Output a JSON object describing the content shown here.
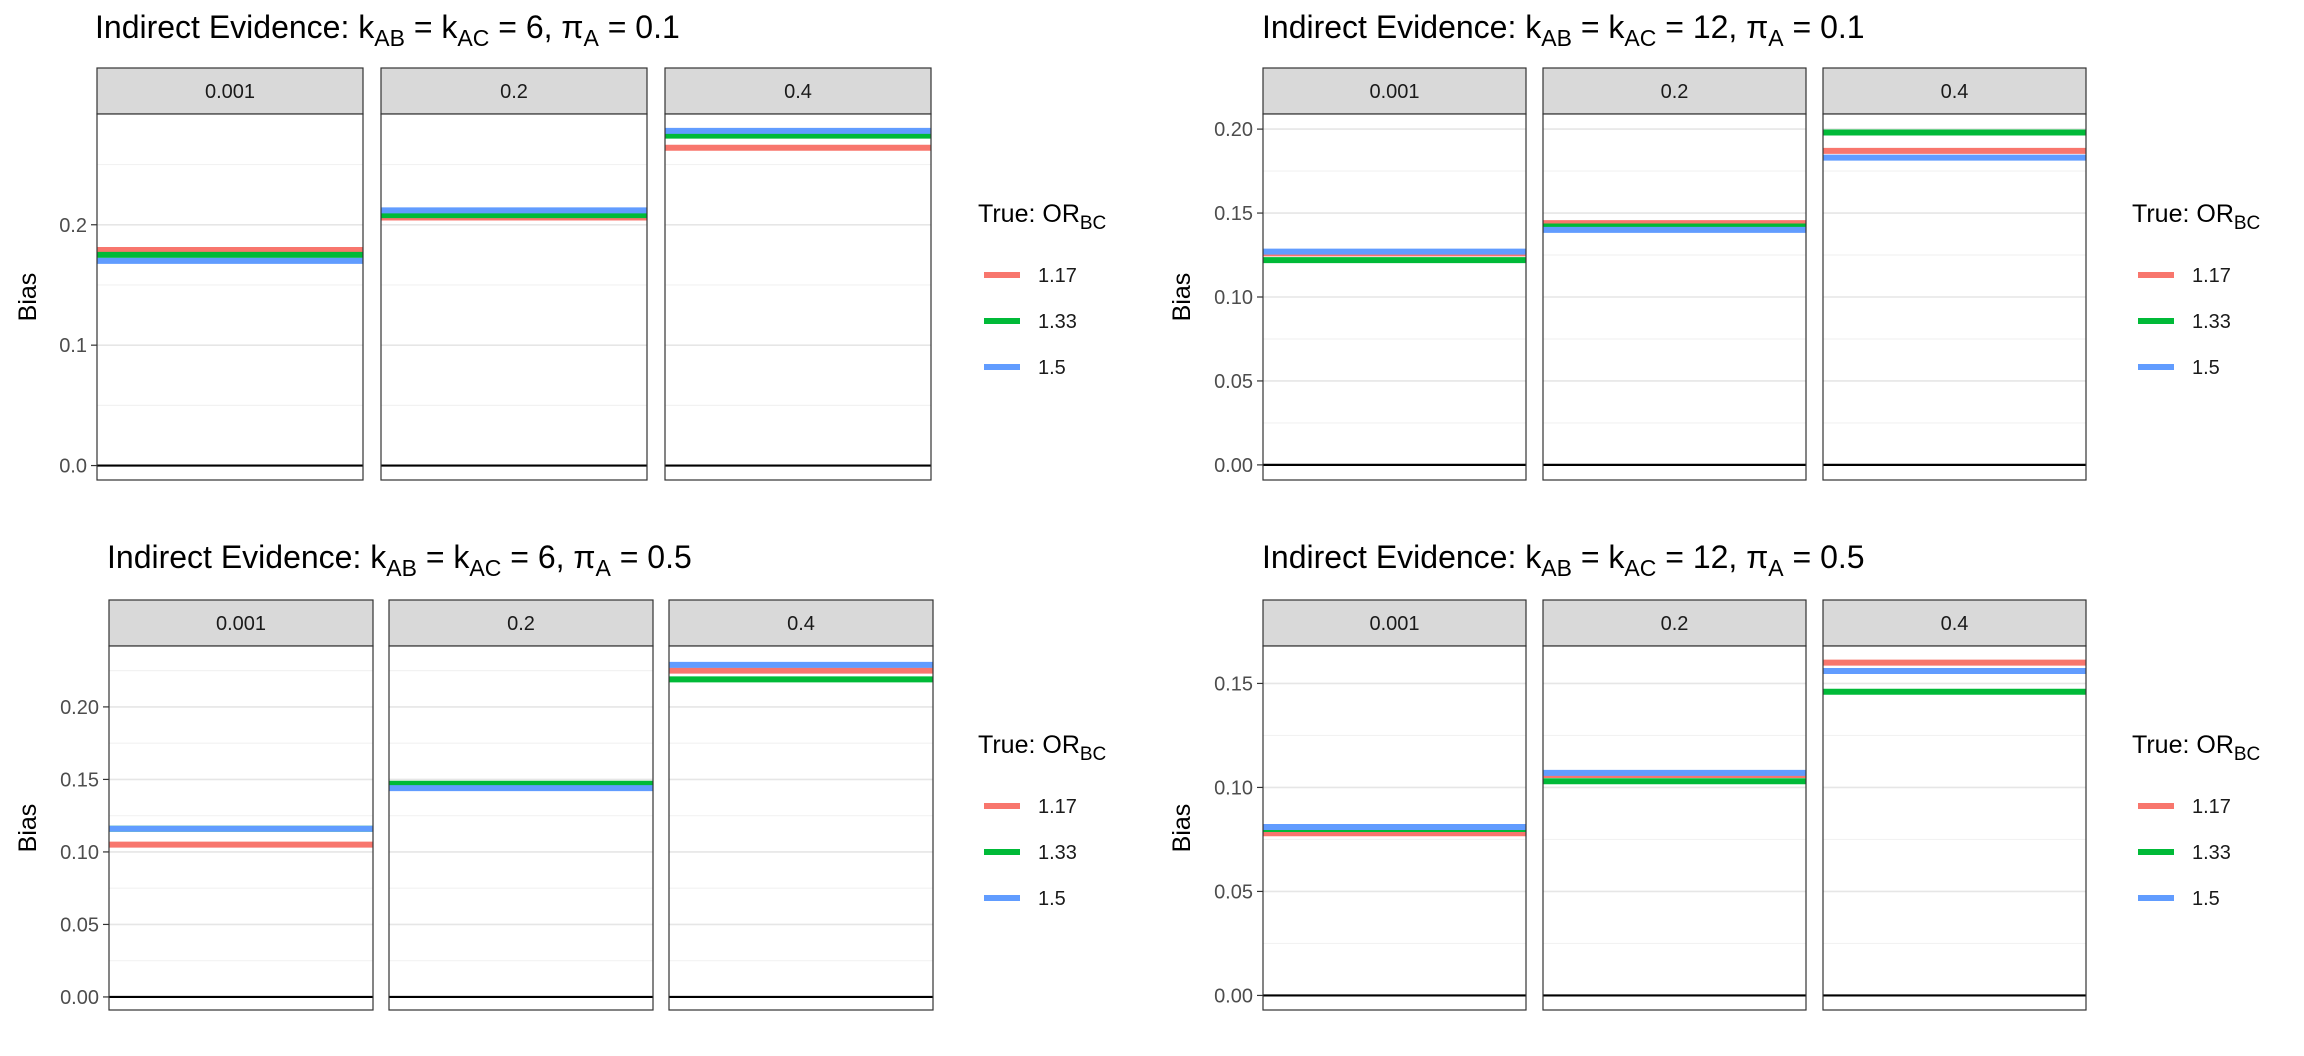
{
  "colors": {
    "s117": "#F8766D",
    "s133": "#00BA38",
    "s15": "#619CFF"
  },
  "chart_data": [
    {
      "type": "line",
      "title": {
        "prefix": "Indirect Evidence: ",
        "k_label": "k",
        "k_sub1": "AB",
        "k_eq": " = ",
        "k_sub2": "AC",
        "k_value": " = 6, ",
        "pi_label": "π",
        "pi_sub": "A",
        "pi_value": " = 0.1"
      },
      "ylabel": "Bias",
      "ylim": [
        -0.012,
        0.292
      ],
      "yticks": [
        0.0,
        0.1,
        0.2
      ],
      "ytick_labels": [
        "0.0",
        "0.1",
        "0.2"
      ],
      "hline": 0,
      "grid": true,
      "facets": [
        "0.001",
        "0.2",
        "0.4"
      ],
      "legend": {
        "title": "True: OR",
        "title_sub": "BC",
        "position": "right",
        "entries": [
          "1.17",
          "1.33",
          "1.5"
        ]
      },
      "series": [
        {
          "name": "1.17",
          "color": "#F8766D",
          "values": [
            0.179,
            0.206,
            0.264
          ]
        },
        {
          "name": "1.33",
          "color": "#00BA38",
          "values": [
            0.175,
            0.208,
            0.274
          ]
        },
        {
          "name": "1.5",
          "color": "#619CFF",
          "values": [
            0.17,
            0.212,
            0.278
          ]
        }
      ]
    },
    {
      "type": "line",
      "title": {
        "prefix": "Indirect Evidence: ",
        "k_label": "k",
        "k_sub1": "AB",
        "k_eq": " = ",
        "k_sub2": "AC",
        "k_value": " = 12, ",
        "pi_label": "π",
        "pi_sub": "A",
        "pi_value": " = 0.1"
      },
      "ylabel": "Bias",
      "ylim": [
        -0.009,
        0.209
      ],
      "yticks": [
        0.0,
        0.05,
        0.1,
        0.15,
        0.2
      ],
      "ytick_labels": [
        "0.00",
        "0.05",
        "0.10",
        "0.15",
        "0.20"
      ],
      "hline": 0,
      "grid": true,
      "facets": [
        "0.001",
        "0.2",
        "0.4"
      ],
      "legend": {
        "title": "True: OR",
        "title_sub": "BC",
        "position": "right",
        "entries": [
          "1.17",
          "1.33",
          "1.5"
        ]
      },
      "series": [
        {
          "name": "1.17",
          "color": "#F8766D",
          "values": [
            0.126,
            0.144,
            0.187
          ]
        },
        {
          "name": "1.33",
          "color": "#00BA38",
          "values": [
            0.122,
            0.142,
            0.198
          ]
        },
        {
          "name": "1.5",
          "color": "#619CFF",
          "values": [
            0.127,
            0.14,
            0.183
          ]
        }
      ]
    },
    {
      "type": "line",
      "title": {
        "prefix": "Indirect Evidence: ",
        "k_label": "k",
        "k_sub1": "AB",
        "k_eq": " = ",
        "k_sub2": "AC",
        "k_value": " = 6, ",
        "pi_label": "π",
        "pi_sub": "A",
        "pi_value": " = 0.5"
      },
      "ylabel": "Bias",
      "ylim": [
        -0.009,
        0.242
      ],
      "yticks": [
        0.0,
        0.05,
        0.1,
        0.15,
        0.2
      ],
      "ytick_labels": [
        "0.00",
        "0.05",
        "0.10",
        "0.15",
        "0.20"
      ],
      "hline": 0,
      "grid": true,
      "facets": [
        "0.001",
        "0.2",
        "0.4"
      ],
      "legend": {
        "title": "True: OR",
        "title_sub": "BC",
        "position": "right",
        "entries": [
          "1.17",
          "1.33",
          "1.5"
        ]
      },
      "series": [
        {
          "name": "1.17",
          "color": "#F8766D",
          "values": [
            0.105,
            0.146,
            0.225
          ]
        },
        {
          "name": "1.33",
          "color": "#00BA38",
          "values": [
            0.116,
            0.147,
            0.219
          ]
        },
        {
          "name": "1.5",
          "color": "#619CFF",
          "values": [
            0.116,
            0.144,
            0.229
          ]
        }
      ]
    },
    {
      "type": "line",
      "title": {
        "prefix": "Indirect Evidence: ",
        "k_label": "k",
        "k_sub1": "AB",
        "k_eq": " = ",
        "k_sub2": "AC",
        "k_value": " = 12, ",
        "pi_label": "π",
        "pi_sub": "A",
        "pi_value": " = 0.5"
      },
      "ylabel": "Bias",
      "ylim": [
        -0.007,
        0.168
      ],
      "yticks": [
        0.0,
        0.05,
        0.1,
        0.15
      ],
      "ytick_labels": [
        "0.00",
        "0.05",
        "0.10",
        "0.15"
      ],
      "hline": 0,
      "grid": true,
      "facets": [
        "0.001",
        "0.2",
        "0.4"
      ],
      "legend": {
        "title": "True: OR",
        "title_sub": "BC",
        "position": "right",
        "entries": [
          "1.17",
          "1.33",
          "1.5"
        ]
      },
      "series": [
        {
          "name": "1.17",
          "color": "#F8766D",
          "values": [
            0.078,
            0.106,
            0.16
          ]
        },
        {
          "name": "1.33",
          "color": "#00BA38",
          "values": [
            0.08,
            0.103,
            0.146
          ]
        },
        {
          "name": "1.5",
          "color": "#619CFF",
          "values": [
            0.081,
            0.107,
            0.156
          ]
        }
      ]
    }
  ]
}
